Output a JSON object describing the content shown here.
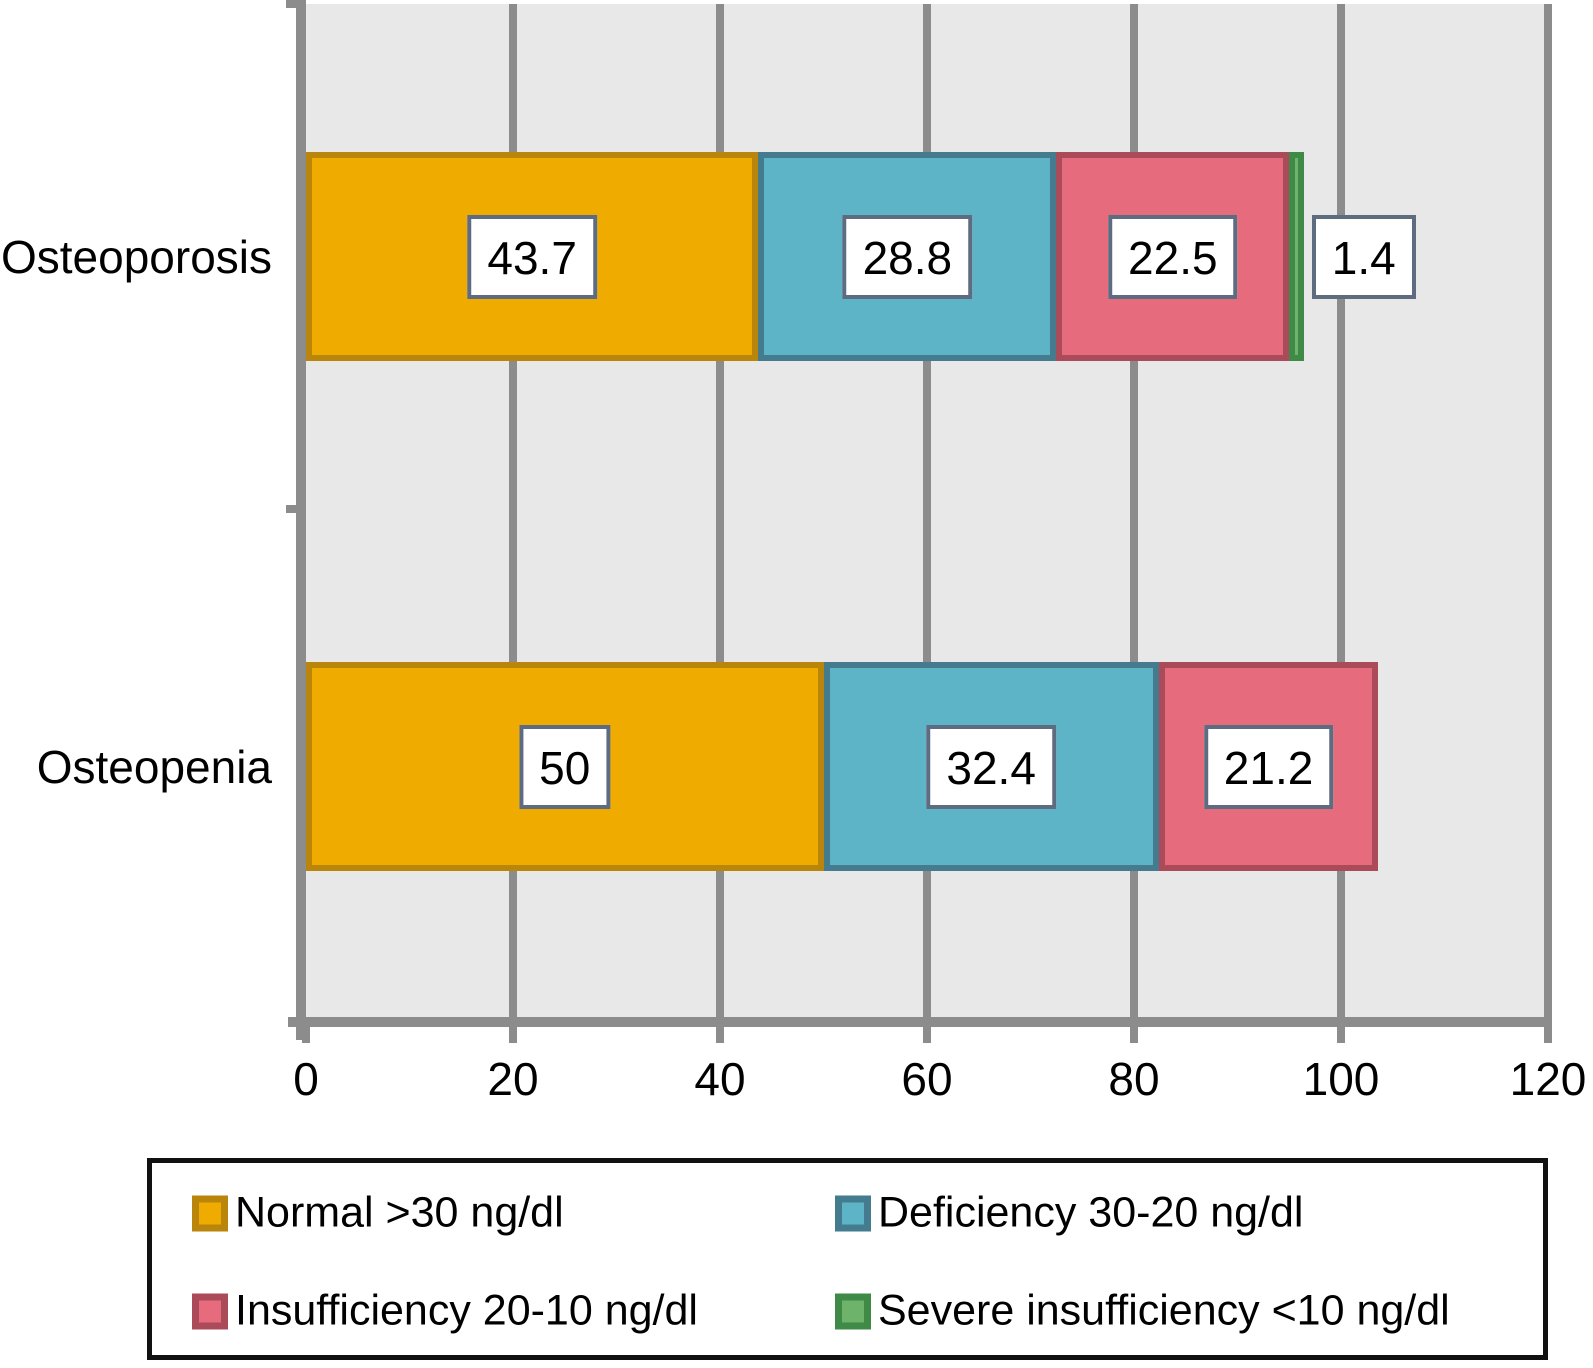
{
  "figure": {
    "plot_background": "#e8e8e8",
    "gridline_color": "#8c8c8c",
    "axis_color": "#8c8c8c",
    "value_box_border": "#5e6c82",
    "value_box_background": "#ffffff",
    "legend_border": "#111111"
  },
  "chart_data": {
    "type": "bar",
    "orientation": "horizontal",
    "stacked": true,
    "title": "",
    "xlabel": "",
    "ylabel": "",
    "categories": [
      "Osteoporosis",
      "Osteopenia"
    ],
    "series": [
      {
        "name": "Normal >30 ng/dl",
        "fill": "#efab00",
        "border": "#b9860b",
        "values": [
          43.7,
          50
        ],
        "labels": [
          "43.7",
          "50"
        ]
      },
      {
        "name": "Deficiency 30-20 ng/dl",
        "fill": "#5db4c7",
        "border": "#447b8e",
        "values": [
          28.8,
          32.4
        ],
        "labels": [
          "28.8",
          "32.4"
        ]
      },
      {
        "name": "Insufficiency 20-10 ng/dl",
        "fill": "#e56b7d",
        "border": "#ab4a59",
        "values": [
          22.5,
          21.2
        ],
        "labels": [
          "22.5",
          "21.2"
        ]
      },
      {
        "name": "Severe insufficiency <10 ng/dl",
        "fill": "#6eb36b",
        "border": "#3f8a46",
        "values": [
          1.4,
          0
        ],
        "labels": [
          "1.4",
          ""
        ]
      }
    ],
    "xlim": [
      0,
      120
    ],
    "xticks": [
      0,
      20,
      40,
      60,
      80,
      100,
      120
    ],
    "grid": true,
    "legend_position": "bottom"
  }
}
